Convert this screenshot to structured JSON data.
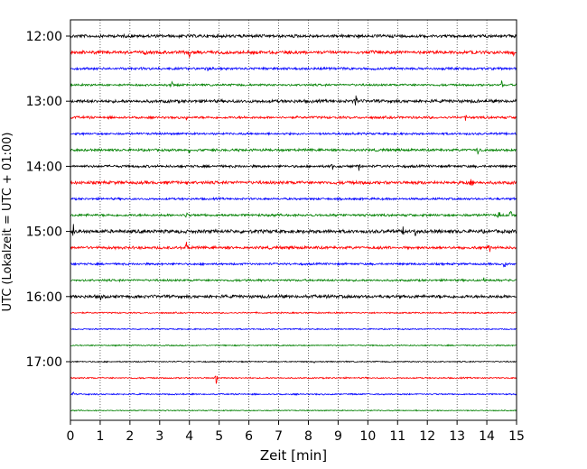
{
  "chart_data": {
    "type": "line",
    "title": "",
    "xlabel": "Zeit  [min]",
    "ylabel": "UTC (Lokalzeit = UTC + 01:00)",
    "xlim": [
      0,
      15
    ],
    "x_ticks": [
      0,
      1,
      2,
      3,
      4,
      5,
      6,
      7,
      8,
      9,
      10,
      11,
      12,
      13,
      14,
      15
    ],
    "y_tick_labels": [
      "12:00",
      "13:00",
      "14:00",
      "15:00",
      "16:00",
      "17:00"
    ],
    "grid": "vertical dotted at each minute",
    "trace_interval_minutes": 15,
    "colors": [
      "#000000",
      "#ff0000",
      "#0000ff",
      "#008000"
    ],
    "series": [
      {
        "start": "12:00",
        "color": "black",
        "noise": 0.9,
        "events": [
          {
            "x": 9.7,
            "amp": 0.5
          }
        ]
      },
      {
        "start": "12:15",
        "color": "red",
        "noise": 0.9,
        "events": [
          {
            "x": 2.5,
            "amp": 0.35
          },
          {
            "x": 4.0,
            "amp": 0.9
          },
          {
            "x": 14.9,
            "amp": 0.8
          }
        ]
      },
      {
        "start": "12:30",
        "color": "blue",
        "noise": 0.7,
        "events": [
          {
            "x": 4.6,
            "amp": 0.35
          },
          {
            "x": 10.2,
            "amp": 0.3
          }
        ]
      },
      {
        "start": "12:45",
        "color": "green",
        "noise": 0.6,
        "events": [
          {
            "x": 3.4,
            "amp": 1.0
          },
          {
            "x": 14.5,
            "amp": 0.6
          }
        ]
      },
      {
        "start": "13:00",
        "color": "black",
        "noise": 0.9,
        "events": [
          {
            "x": 9.6,
            "amp": 0.6
          }
        ]
      },
      {
        "start": "13:15",
        "color": "red",
        "noise": 0.7,
        "events": [
          {
            "x": 3.9,
            "amp": 0.4
          },
          {
            "x": 13.3,
            "amp": 0.4
          }
        ]
      },
      {
        "start": "13:30",
        "color": "blue",
        "noise": 0.6,
        "events": [
          {
            "x": 9.5,
            "amp": 0.3
          }
        ]
      },
      {
        "start": "13:45",
        "color": "green",
        "noise": 0.7,
        "events": [
          {
            "x": 4.0,
            "amp": 0.8
          },
          {
            "x": 13.7,
            "amp": 0.8
          }
        ]
      },
      {
        "start": "14:00",
        "color": "black",
        "noise": 0.7,
        "events": [
          {
            "x": 8.8,
            "amp": 0.9
          },
          {
            "x": 9.7,
            "amp": 0.5
          }
        ]
      },
      {
        "start": "14:15",
        "color": "red",
        "noise": 0.9,
        "events": [
          {
            "x": 3.9,
            "amp": 0.4
          },
          {
            "x": 13.5,
            "amp": 0.9
          }
        ]
      },
      {
        "start": "14:30",
        "color": "blue",
        "noise": 0.6,
        "events": []
      },
      {
        "start": "14:45",
        "color": "green",
        "noise": 0.7,
        "events": [
          {
            "x": 3.9,
            "amp": 0.5
          },
          {
            "x": 14.4,
            "amp": 0.6
          },
          {
            "x": 14.8,
            "amp": 0.5
          }
        ]
      },
      {
        "start": "15:00",
        "color": "black",
        "noise": 1.0,
        "events": [
          {
            "x": 0.1,
            "amp": 0.9
          },
          {
            "x": 11.2,
            "amp": 0.6
          },
          {
            "x": 11.6,
            "amp": 0.6
          }
        ]
      },
      {
        "start": "15:15",
        "color": "red",
        "noise": 0.8,
        "events": [
          {
            "x": 3.9,
            "amp": 0.9
          },
          {
            "x": 14.1,
            "amp": 0.5
          }
        ]
      },
      {
        "start": "15:30",
        "color": "blue",
        "noise": 0.6,
        "events": [
          {
            "x": 14.6,
            "amp": 0.9
          }
        ]
      },
      {
        "start": "15:45",
        "color": "green",
        "noise": 0.6,
        "events": [
          {
            "x": 5.9,
            "amp": 0.4
          },
          {
            "x": 13.9,
            "amp": 0.35
          }
        ]
      },
      {
        "start": "16:00",
        "color": "black",
        "noise": 0.9,
        "events": [
          {
            "x": 0.1,
            "amp": 0.3
          },
          {
            "x": 1.0,
            "amp": 0.5
          },
          {
            "x": 8.8,
            "amp": 0.35
          }
        ]
      },
      {
        "start": "16:15",
        "color": "red",
        "noise": 0.4,
        "events": []
      },
      {
        "start": "16:30",
        "color": "blue",
        "noise": 0.35,
        "events": []
      },
      {
        "start": "16:45",
        "color": "green",
        "noise": 0.35,
        "events": []
      },
      {
        "start": "17:00",
        "color": "black",
        "noise": 0.35,
        "events": [
          {
            "x": 8.2,
            "amp": 0.25
          }
        ]
      },
      {
        "start": "17:15",
        "color": "red",
        "noise": 0.4,
        "events": [
          {
            "x": 4.9,
            "amp": 1.0
          }
        ]
      },
      {
        "start": "17:30",
        "color": "blue",
        "noise": 0.4,
        "events": [
          {
            "x": 0.1,
            "amp": 0.3
          }
        ]
      },
      {
        "start": "17:45",
        "color": "green",
        "noise": 0.3,
        "events": []
      }
    ]
  }
}
